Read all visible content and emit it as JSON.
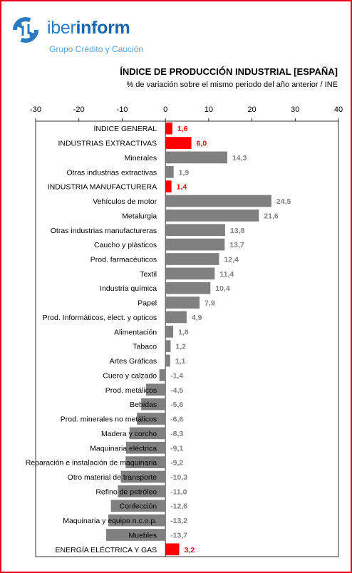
{
  "header": {
    "brand_light": "iber",
    "brand_bold": "inform",
    "tagline": "Grupo Crédito y Caución",
    "logo_icon": "iberinform-arrows-icon"
  },
  "colors": {
    "highlight": "#ff0000",
    "bar": "#808080",
    "label_gray": "#808080",
    "frame": "#e8001c",
    "brand": "#2a7bbf"
  },
  "chart_data": {
    "type": "bar",
    "orientation": "horizontal",
    "title": "ÍNDICE DE PRODUCCIÓN INDUSTRIAL [ESPAÑA]",
    "subtitle": "% de variación sobre el mismo periodo del año anterior / INE",
    "xlim": [
      -30,
      40
    ],
    "xticks": [
      "-30",
      "-20",
      "-10",
      "0",
      "10",
      "20",
      "30",
      "40"
    ],
    "grid": false,
    "legend": "none",
    "categories": [
      "ÍNDICE GENERAL",
      "INDUSTRIAS EXTRACTIVAS",
      "Minerales",
      "Otras industrias extractivas",
      "INDUSTRIA MANUFACTURERA",
      "Vehículos de motor",
      "Metalurgia",
      "Otras industrias manufactureras",
      "Caucho y plásticos",
      "Prod. farmacéuticos",
      "Textil",
      "Industria química",
      "Papel",
      "Prod. Informáticos, elect. y opticos",
      "Alimentación",
      "Tabaco",
      "Artes Gráficas",
      "Cuero y calzado",
      "Prod. metálicos",
      "Bebidas",
      "Prod. minerales no metálicos",
      "Madera y corcho",
      "Maquinaria eléctrica",
      "Reparación e instalación de maquinaria",
      "Otro material de transporte",
      "Refino de petróleo",
      "Confección",
      "Maquinaria y equipo n.c.o.p.",
      "Muebles",
      "ENERGÍA ELÉCTRICA Y GAS"
    ],
    "values": [
      1.6,
      6.0,
      14.3,
      1.9,
      1.4,
      24.5,
      21.6,
      13.8,
      13.7,
      12.4,
      11.4,
      10.4,
      7.9,
      4.9,
      1.8,
      1.2,
      1.1,
      -1.4,
      -4.5,
      -5.6,
      -6.6,
      -8.3,
      -9.1,
      -9.2,
      -10.3,
      -11.0,
      -12.6,
      -13.2,
      -13.7,
      3.2
    ],
    "labels": [
      "1,6",
      "6,0",
      "14,3",
      "1,9",
      "1,4",
      "24,5",
      "21,6",
      "13,8",
      "13,7",
      "12,4",
      "11,4",
      "10,4",
      "7,9",
      "4,9",
      "1,8",
      "1,2",
      "1,1",
      "-1,4",
      "-4,5",
      "-5,6",
      "-6,6",
      "-8,3",
      "-9,1",
      "-9,2",
      "-10,3",
      "-11,0",
      "-12,6",
      "-13,2",
      "-13,7",
      "3,2"
    ],
    "highlighted": [
      true,
      true,
      false,
      false,
      true,
      false,
      false,
      false,
      false,
      false,
      false,
      false,
      false,
      false,
      false,
      false,
      false,
      false,
      false,
      false,
      false,
      false,
      false,
      false,
      false,
      false,
      false,
      false,
      false,
      true
    ]
  }
}
